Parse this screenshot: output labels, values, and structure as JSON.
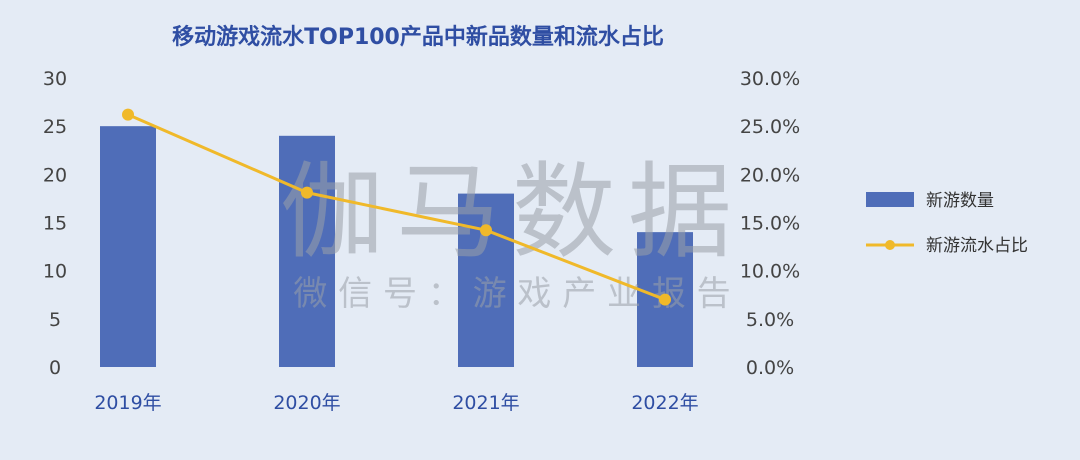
{
  "chart_data": {
    "type": "bar+line",
    "title": "移动游戏流水TOP100产品中新品数量和流水占比",
    "categories": [
      "2019年",
      "2020年",
      "2021年",
      "2022年"
    ],
    "series": [
      {
        "name": "新游数量",
        "type": "bar",
        "axis": "left",
        "values": [
          25,
          24,
          18,
          14
        ]
      },
      {
        "name": "新游流水占比",
        "type": "line",
        "axis": "right",
        "values": [
          26.2,
          18.1,
          14.2,
          7.0
        ]
      }
    ],
    "y_left": {
      "ylim": [
        0,
        30
      ],
      "ticks": [
        "0",
        "5",
        "10",
        "15",
        "20",
        "25",
        "30"
      ]
    },
    "y_right": {
      "ylim": [
        0,
        30
      ],
      "ticks": [
        "0.0%",
        "5.0%",
        "10.0%",
        "15.0%",
        "20.0%",
        "25.0%",
        "30.0%"
      ]
    },
    "grid": false,
    "legend_position": "right",
    "colors": {
      "bar": "#4f6db8",
      "line": "#f0b92a",
      "title": "#2f4ea3",
      "background": "#e4ebf5"
    },
    "watermark": {
      "main": "伽马数据",
      "sub": "微 信 号 ： 游 戏 产 业 报 告"
    }
  }
}
